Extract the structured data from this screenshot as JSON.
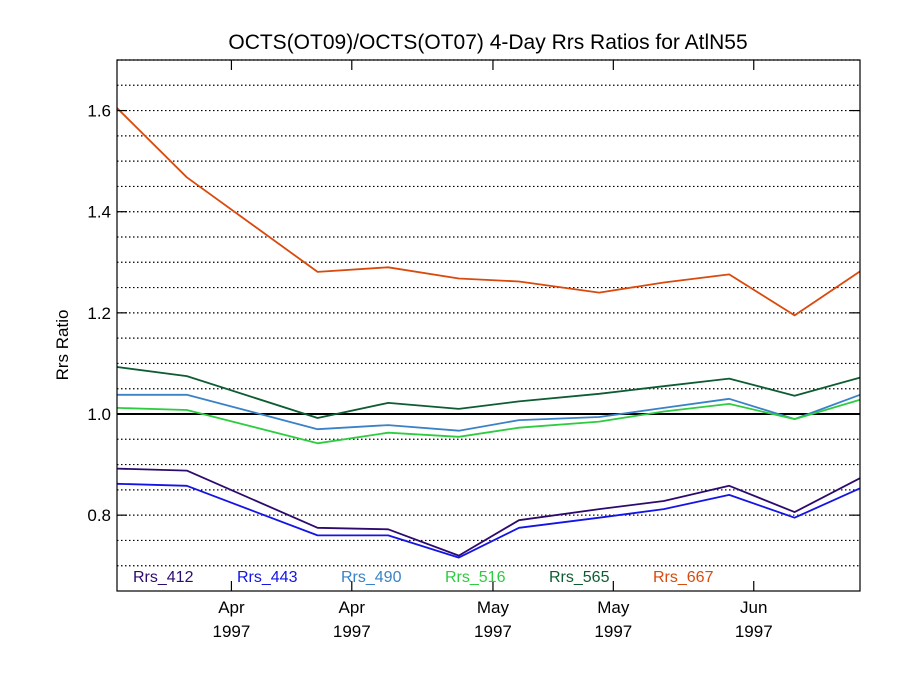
{
  "chart_data": {
    "type": "line",
    "title": "OCTS(OT09)/OCTS(OT07) 4-Day Rrs Ratios for AtlN55",
    "ylabel": "Rrs Ratio",
    "xlabel": "",
    "ylim": [
      0.65,
      1.7
    ],
    "xlim": [
      0,
      100
    ],
    "yticks": [
      {
        "value": 0.8,
        "label": "0.8"
      },
      {
        "value": 1.0,
        "label": "1.0"
      },
      {
        "value": 1.2,
        "label": "1.2"
      },
      {
        "value": 1.4,
        "label": "1.4"
      },
      {
        "value": 1.6,
        "label": "1.6"
      }
    ],
    "xticks": [
      {
        "value": 15.4,
        "month": "Apr",
        "year": "1997"
      },
      {
        "value": 31.6,
        "month": "Apr",
        "year": "1997"
      },
      {
        "value": 50.6,
        "month": "May",
        "year": "1997"
      },
      {
        "value": 66.8,
        "month": "May",
        "year": "1997"
      },
      {
        "value": 85.7,
        "month": "Jun",
        "year": "1997"
      }
    ],
    "reference_line": 1.0,
    "grid": true,
    "legend_position": "bottom",
    "x": [
      0,
      9.4,
      27,
      36.5,
      46,
      54.1,
      64.9,
      73.6,
      82.4,
      91.2,
      100
    ],
    "series": [
      {
        "name": "Rrs_412",
        "color": "#2d0a6e",
        "values": [
          0.892,
          0.888,
          0.775,
          0.772,
          0.72,
          0.79,
          0.812,
          0.828,
          0.858,
          0.806,
          0.873
        ]
      },
      {
        "name": "Rrs_443",
        "color": "#1414e6",
        "values": [
          0.862,
          0.858,
          0.76,
          0.76,
          0.716,
          0.775,
          0.795,
          0.812,
          0.84,
          0.795,
          0.853
        ]
      },
      {
        "name": "Rrs_490",
        "color": "#3a82c8",
        "values": [
          1.038,
          1.038,
          0.97,
          0.978,
          0.967,
          0.988,
          0.994,
          1.012,
          1.03,
          0.99,
          1.038
        ]
      },
      {
        "name": "Rrs_516",
        "color": "#2ecc40",
        "values": [
          1.012,
          1.008,
          0.942,
          0.963,
          0.955,
          0.973,
          0.985,
          1.005,
          1.02,
          0.99,
          1.028
        ]
      },
      {
        "name": "Rrs_565",
        "color": "#0d5c32",
        "values": [
          1.093,
          1.075,
          0.992,
          1.022,
          1.01,
          1.025,
          1.04,
          1.055,
          1.07,
          1.036,
          1.072
        ]
      },
      {
        "name": "Rrs_667",
        "color": "#d94a0c",
        "values": [
          1.605,
          1.468,
          1.281,
          1.29,
          1.268,
          1.262,
          1.24,
          1.26,
          1.276,
          1.195,
          1.282
        ]
      }
    ]
  }
}
